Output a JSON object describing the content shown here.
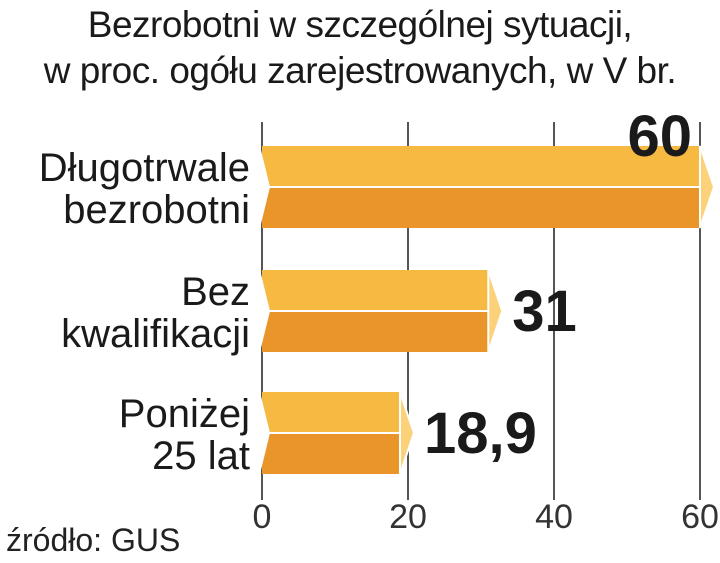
{
  "title_lines": [
    "Bezrobotni w szczególnej sytuacji,",
    "w proc. ogółu zarejestrowanych, w V br."
  ],
  "source": "źródło: GUS",
  "colors": {
    "bar_top": "#f6b942",
    "bar_bottom": "#e9952a",
    "bar_tip": "#fbd27a",
    "bar_edge": "#ffffff",
    "grid": "#555555"
  },
  "chart_data": {
    "type": "bar",
    "orientation": "horizontal",
    "categories": [
      [
        "Długotrwale",
        "bezrobotni"
      ],
      [
        "Bez",
        "kwalifikacji"
      ],
      [
        "Poniżej",
        "25 lat"
      ]
    ],
    "values": [
      60,
      31,
      18.9
    ],
    "value_labels": [
      "60",
      "31",
      "18,9"
    ],
    "xlim": [
      0,
      60
    ],
    "xticks": [
      0,
      20,
      40,
      60
    ],
    "grid": true
  }
}
